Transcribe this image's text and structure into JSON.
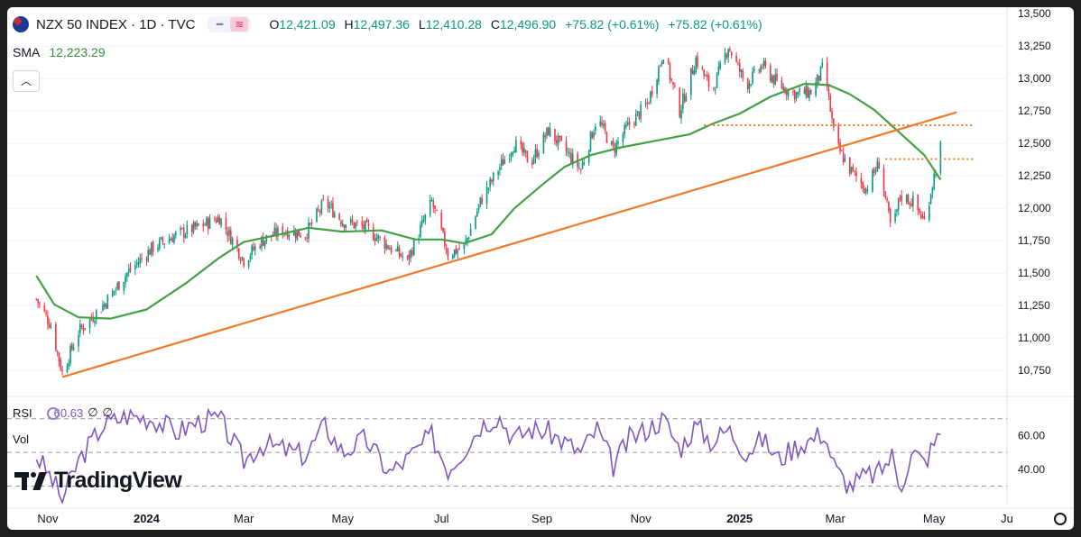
{
  "header": {
    "symbol": "NZX 50 INDEX · 1D · TVC",
    "ohlc": {
      "o_label": "O",
      "open": "12,421.09",
      "h_label": "H",
      "high": "12,497.36",
      "l_label": "L",
      "low": "12,410.28",
      "c_label": "C",
      "close": "12,496.90",
      "change": "+75.82 (+0.61%)",
      "change2": "+75.82 (+0.61%)"
    },
    "sma_label": "SMA",
    "sma_value": "12,223.29"
  },
  "indicators": {
    "rsi_label": "RSI",
    "rsi_value": "60.63",
    "rsi_extra1": "∅",
    "rsi_extra2": "∅",
    "vol_label": "Vol"
  },
  "logo": {
    "text": "TradingView"
  },
  "colors": {
    "up": "#089981",
    "down": "#f23645",
    "sma": "#43a047",
    "trend": "#f07a2a",
    "rsi": "#7e57c2",
    "grid": "#f0f3fa",
    "text": "#131722"
  },
  "chart_data": [
    {
      "type": "candlestick",
      "title": "NZX 50 INDEX · 1D · TVC",
      "x_ticks": [
        "Nov",
        "2024",
        "Mar",
        "May",
        "Jul",
        "Sep",
        "Nov",
        "2025",
        "Mar",
        "May",
        "Ju"
      ],
      "y_ticks": [
        "13,500",
        "13,250",
        "13,000",
        "12,750",
        "12,500",
        "12,250",
        "12,000",
        "11,750",
        "11,500",
        "11,250",
        "11,000",
        "10,750"
      ],
      "ylim": [
        10550,
        13550
      ],
      "series": [
        {
          "name": "SMA",
          "type": "line",
          "color": "#43a047",
          "x": [
            "2023-10-25",
            "2023-11-05",
            "2023-11-20",
            "2023-12-10",
            "2024-01-01",
            "2024-01-25",
            "2024-02-15",
            "2024-03-01",
            "2024-03-20",
            "2024-04-10",
            "2024-05-01",
            "2024-05-25",
            "2024-06-15",
            "2024-07-01",
            "2024-07-15",
            "2024-08-01",
            "2024-08-15",
            "2024-09-01",
            "2024-09-15",
            "2024-10-01",
            "2024-10-20",
            "2024-11-10",
            "2024-12-01",
            "2024-12-15",
            "2025-01-01",
            "2025-01-20",
            "2025-02-10",
            "2025-02-25",
            "2025-03-10",
            "2025-03-25",
            "2025-04-10",
            "2025-04-25",
            "2025-05-05"
          ],
          "y": [
            11480,
            11260,
            11160,
            11150,
            11220,
            11420,
            11620,
            11740,
            11790,
            11850,
            11820,
            11830,
            11760,
            11760,
            11730,
            11800,
            12000,
            12180,
            12320,
            12410,
            12470,
            12520,
            12570,
            12650,
            12730,
            12860,
            12960,
            12950,
            12880,
            12760,
            12580,
            12410,
            12220
          ]
        },
        {
          "name": "Trend",
          "type": "line",
          "color": "#f07a2a",
          "x": [
            "2023-11-10",
            "2025-05-15"
          ],
          "y": [
            10700,
            12740
          ]
        },
        {
          "name": "Level 1",
          "type": "hline",
          "color": "#f07a2a",
          "style": "dotted",
          "x": [
            "2024-12-10",
            "2025-05-25"
          ],
          "y": 12640
        },
        {
          "name": "Level 2",
          "type": "hline",
          "color": "#f07a2a",
          "style": "dotted",
          "x": [
            "2025-04-01",
            "2025-05-25"
          ],
          "y": 12380
        }
      ],
      "price_path": {
        "x": [
          "2023-10-25",
          "2023-11-03",
          "2023-11-10",
          "2023-11-20",
          "2023-12-05",
          "2023-12-20",
          "2024-01-05",
          "2024-01-20",
          "2024-02-01",
          "2024-02-15",
          "2024-03-01",
          "2024-03-12",
          "2024-03-25",
          "2024-04-08",
          "2024-04-20",
          "2024-05-01",
          "2024-05-15",
          "2024-05-30",
          "2024-06-10",
          "2024-06-25",
          "2024-07-05",
          "2024-07-15",
          "2024-07-25",
          "2024-08-05",
          "2024-08-15",
          "2024-08-25",
          "2024-09-05",
          "2024-09-15",
          "2024-09-25",
          "2024-10-05",
          "2024-10-15",
          "2024-10-25",
          "2024-11-05",
          "2024-11-15",
          "2024-11-25",
          "2024-12-05",
          "2024-12-15",
          "2024-12-25",
          "2025-01-05",
          "2025-01-15",
          "2025-01-25",
          "2025-02-05",
          "2025-02-15",
          "2025-02-22",
          "2025-03-01",
          "2025-03-10",
          "2025-03-20",
          "2025-03-28",
          "2025-04-05",
          "2025-04-10",
          "2025-04-18",
          "2025-04-25",
          "2025-05-01",
          "2025-05-05"
        ],
        "y": [
          11300,
          11100,
          10730,
          11050,
          11250,
          11500,
          11700,
          11800,
          11850,
          11930,
          11600,
          11750,
          11830,
          11800,
          12050,
          11900,
          11850,
          11700,
          11600,
          12050,
          11650,
          11700,
          12050,
          12300,
          12500,
          12350,
          12600,
          12450,
          12300,
          12700,
          12450,
          12650,
          12800,
          13200,
          12750,
          13150,
          12900,
          13250,
          12950,
          13100,
          12950,
          12880,
          12900,
          13100,
          12500,
          12300,
          12150,
          12350,
          11800,
          12100,
          12050,
          11900,
          12250,
          12480
        ]
      }
    },
    {
      "type": "line",
      "title": "RSI",
      "y_ticks": [
        "60.00",
        "40.00"
      ],
      "ylim": [
        19,
        80
      ],
      "bands": [
        70,
        50,
        30
      ],
      "series": [
        {
          "name": "RSI",
          "color": "#7e57c2",
          "x": [
            "2023-10-25",
            "2023-11-03",
            "2023-11-10",
            "2023-11-20",
            "2023-12-05",
            "2023-12-20",
            "2024-01-05",
            "2024-01-20",
            "2024-02-01",
            "2024-02-15",
            "2024-03-01",
            "2024-03-12",
            "2024-03-25",
            "2024-04-08",
            "2024-04-20",
            "2024-05-01",
            "2024-05-15",
            "2024-05-30",
            "2024-06-10",
            "2024-06-25",
            "2024-07-05",
            "2024-07-15",
            "2024-07-25",
            "2024-08-05",
            "2024-08-15",
            "2024-08-25",
            "2024-09-05",
            "2024-09-15",
            "2024-09-25",
            "2024-10-05",
            "2024-10-15",
            "2024-10-25",
            "2024-11-05",
            "2024-11-15",
            "2024-11-25",
            "2024-12-05",
            "2024-12-15",
            "2024-12-25",
            "2025-01-05",
            "2025-01-15",
            "2025-01-25",
            "2025-02-05",
            "2025-02-15",
            "2025-02-22",
            "2025-03-01",
            "2025-03-10",
            "2025-03-20",
            "2025-03-28",
            "2025-04-05",
            "2025-04-10",
            "2025-04-18",
            "2025-04-25",
            "2025-05-01",
            "2025-05-05"
          ],
          "y": [
            48,
            35,
            22,
            45,
            66,
            72,
            70,
            62,
            68,
            70,
            45,
            55,
            52,
            48,
            66,
            50,
            58,
            38,
            46,
            60,
            40,
            52,
            66,
            72,
            58,
            64,
            62,
            56,
            50,
            64,
            42,
            58,
            64,
            70,
            52,
            66,
            56,
            64,
            50,
            58,
            46,
            54,
            58,
            62,
            40,
            30,
            36,
            38,
            48,
            30,
            50,
            44,
            55,
            60.6
          ]
        }
      ]
    }
  ]
}
